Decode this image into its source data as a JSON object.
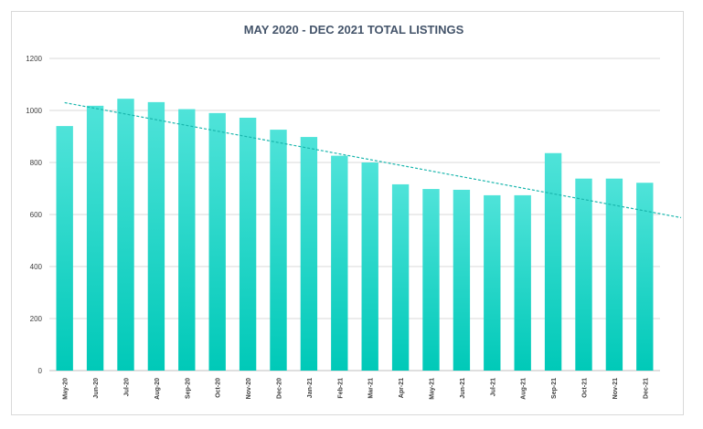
{
  "chart_data": {
    "type": "bar",
    "title": "MAY 2020 - DEC 2021 TOTAL LISTINGS",
    "xlabel": "",
    "ylabel": "",
    "categories": [
      "May-20",
      "Jun-20",
      "Jul-20",
      "Aug-20",
      "Sep-20",
      "Oct-20",
      "Nov-20",
      "Dec-20",
      "Jan-21",
      "Feb-21",
      "Mar-21",
      "Apr-21",
      "May-21",
      "Jun-21",
      "Jul-21",
      "Aug-21",
      "Sep-21",
      "Oct-21",
      "Nov-21",
      "Dec-21"
    ],
    "values": [
      940,
      1018,
      1045,
      1032,
      1005,
      990,
      972,
      926,
      898,
      826,
      800,
      716,
      698,
      695,
      674,
      674,
      836,
      738,
      738,
      722
    ],
    "ylim": [
      0,
      1200
    ],
    "yticks": [
      0,
      200,
      400,
      600,
      800,
      1000,
      1200
    ],
    "grid": true,
    "trendline": {
      "type": "linear",
      "style": "dashed",
      "start_value": 1030,
      "end_value": 588
    },
    "colors": {
      "bar_top": "#4fe3d9",
      "bar_bottom": "#00c9b8",
      "trendline": "#1ab6ad",
      "grid": "#d9d9d9",
      "title": "#44546a"
    }
  }
}
